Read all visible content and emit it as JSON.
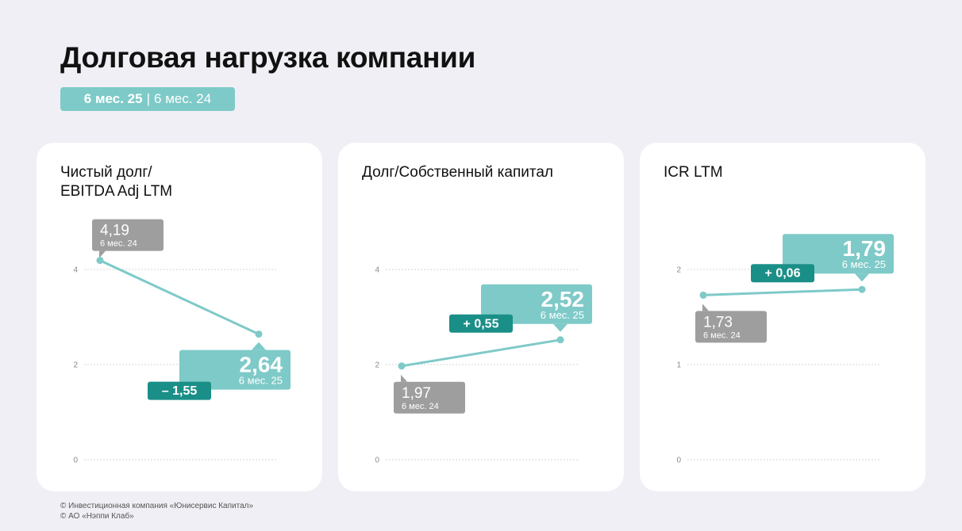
{
  "title": "Долговая нагрузка компании",
  "period": {
    "current": "6 мес. 25",
    "separator": "|",
    "previous": "6 мес. 24"
  },
  "colors": {
    "line": "#7ecac8",
    "current": "#7ecac8",
    "previous": "#9e9e9e",
    "delta": "#1a8f87",
    "grid": "#d6d6d6",
    "tick": "#8a8a8a"
  },
  "chart_data": [
    {
      "type": "line",
      "title": "Чистый долг/\nEBITDA Adj LTM",
      "ylim": [
        0,
        4
      ],
      "yticks": [
        "0",
        "2",
        "4"
      ],
      "points": [
        {
          "value": 4.19,
          "label": "4,19",
          "period": "6 мес. 24"
        },
        {
          "value": 2.64,
          "label": "2,64",
          "period": "6 мес. 25"
        }
      ],
      "delta": "– 1,55"
    },
    {
      "type": "line",
      "title": "Долг/Собственный капитал",
      "ylim": [
        0,
        4
      ],
      "yticks": [
        "0",
        "2",
        "4"
      ],
      "points": [
        {
          "value": 1.97,
          "label": "1,97",
          "period": "6 мес. 24"
        },
        {
          "value": 2.52,
          "label": "2,52",
          "period": "6 мес. 25"
        }
      ],
      "delta": "+ 0,55"
    },
    {
      "type": "line",
      "title": "ICR LTM",
      "ylim": [
        0,
        2
      ],
      "yticks": [
        "0",
        "1",
        "2"
      ],
      "points": [
        {
          "value": 1.73,
          "label": "1,73",
          "period": "6 мес. 24"
        },
        {
          "value": 1.79,
          "label": "1,79",
          "period": "6 мес. 25"
        }
      ],
      "delta": "+ 0,06"
    }
  ],
  "footer": {
    "line1": "© Инвестиционная компания «Юнисервис Капитал»",
    "line2": "© АО «Нэппи Клаб»"
  }
}
